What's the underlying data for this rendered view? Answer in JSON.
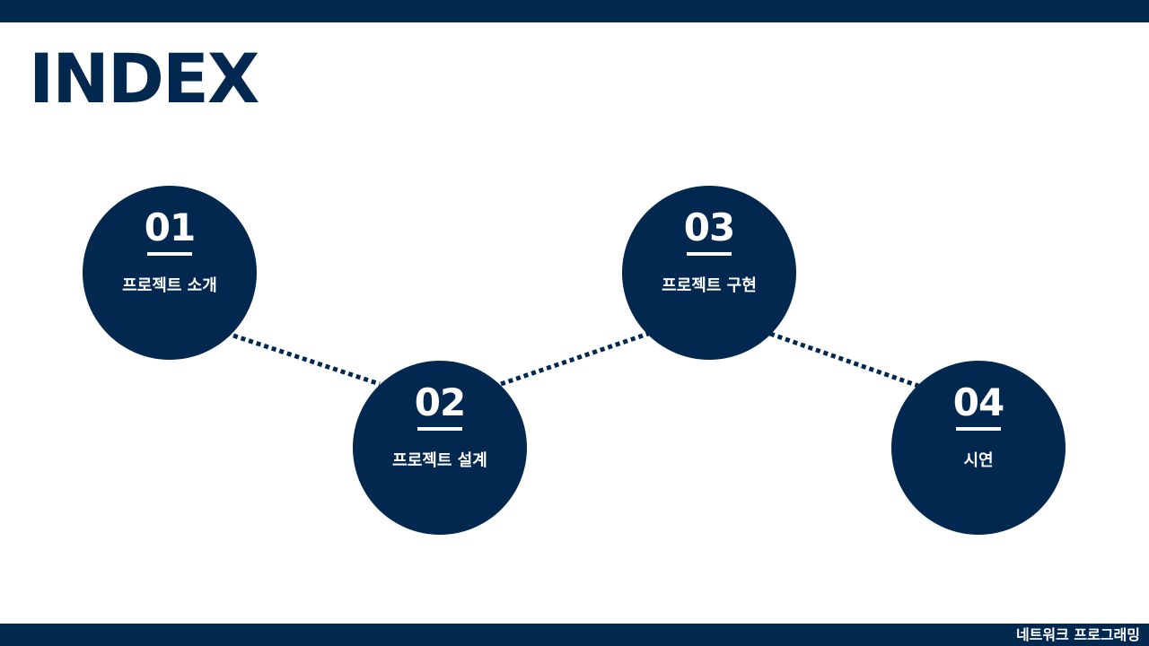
{
  "title": "INDEX",
  "footer": "네트워크 프로그래밍",
  "colors": {
    "navy": "#03284f",
    "white": "#ffffff"
  },
  "items": [
    {
      "number": "01",
      "label": "프로젝트 소개"
    },
    {
      "number": "02",
      "label": "프로젝트 설계"
    },
    {
      "number": "03",
      "label": "프로젝트 구현"
    },
    {
      "number": "04",
      "label": "시연"
    }
  ]
}
